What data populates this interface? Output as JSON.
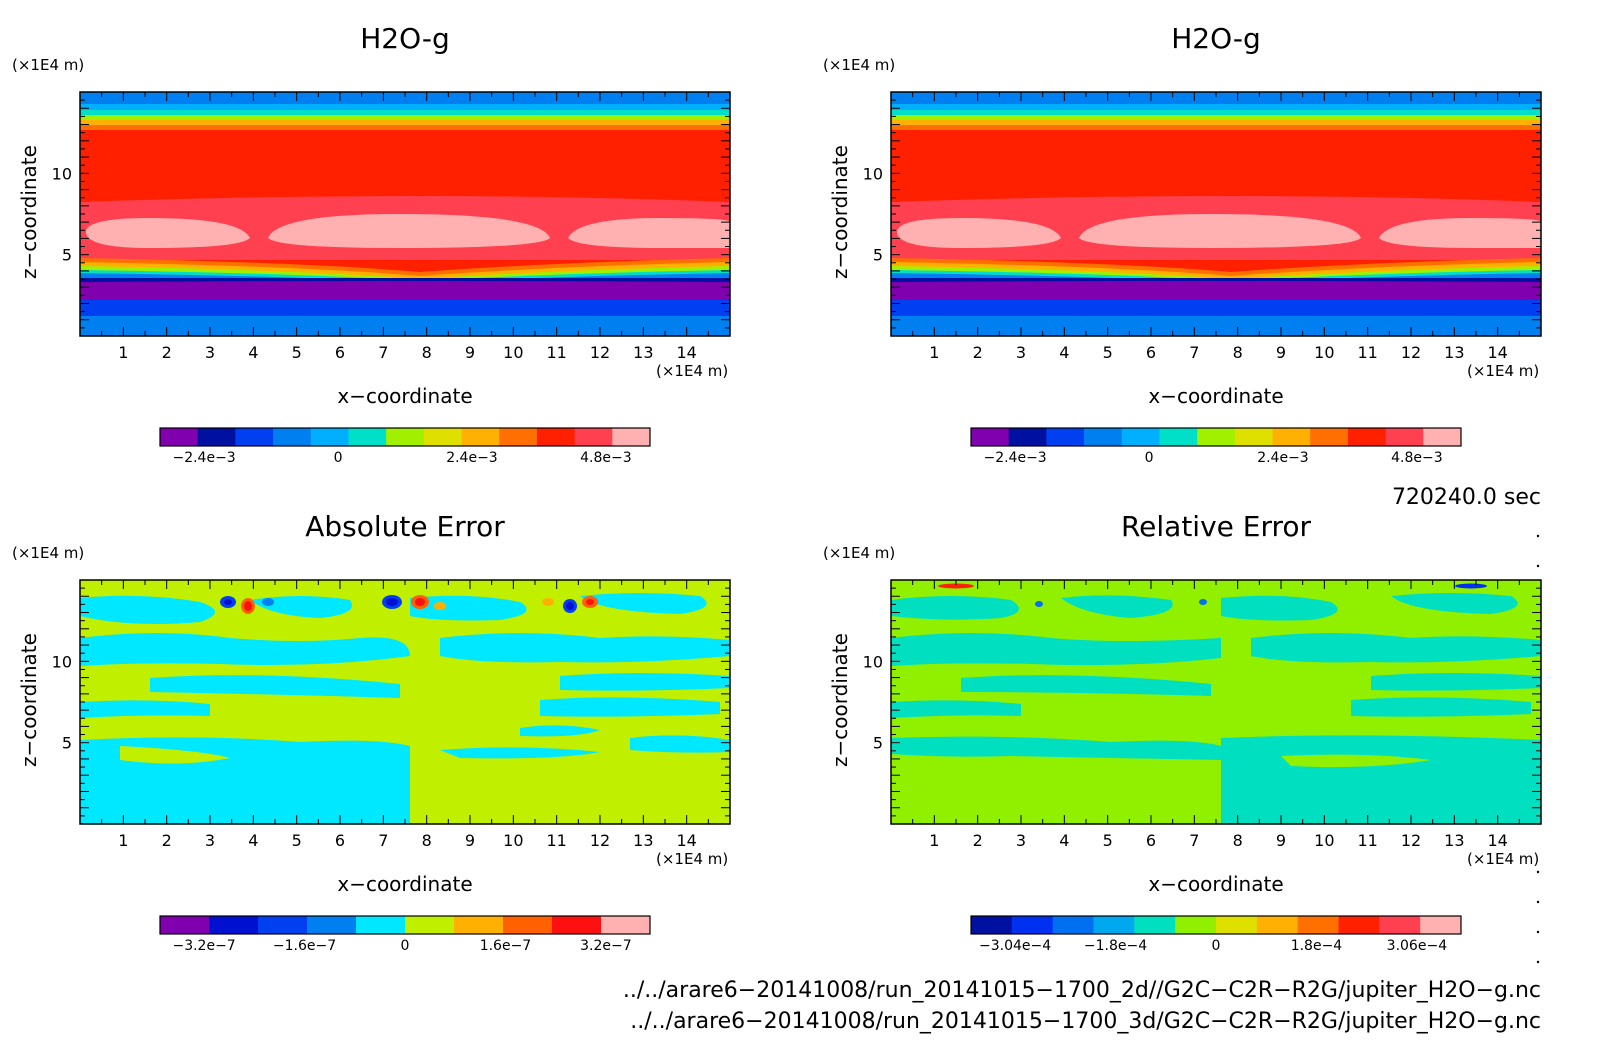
{
  "panels": [
    {
      "title": "H2O-g",
      "xlabel": "x−coordinate",
      "ylabel": "z−coordinate",
      "xunit": "(×1E4 m)",
      "yunit": "(×1E4 m)",
      "xticks": [
        "1",
        "2",
        "3",
        "4",
        "5",
        "6",
        "7",
        "8",
        "9",
        "10",
        "11",
        "12",
        "13",
        "14"
      ],
      "yticks": [
        "5",
        "10"
      ],
      "colorbar": {
        "labels": [
          "−2.4e−3",
          "0",
          "2.4e−3",
          "4.8e−3"
        ],
        "colors": [
          "#8000b0",
          "#0010a0",
          "#0040f0",
          "#0080f0",
          "#00b0ff",
          "#00e0c8",
          "#a0f000",
          "#e0e000",
          "#ffb000",
          "#ff7000",
          "#ff2000",
          "#ff4050",
          "#ffb0b0"
        ]
      }
    },
    {
      "title": "H2O-g",
      "xlabel": "x−coordinate",
      "ylabel": "z−coordinate",
      "xunit": "(×1E4 m)",
      "yunit": "(×1E4 m)",
      "xticks": [
        "1",
        "2",
        "3",
        "4",
        "5",
        "6",
        "7",
        "8",
        "9",
        "10",
        "11",
        "12",
        "13",
        "14"
      ],
      "yticks": [
        "5",
        "10"
      ],
      "colorbar": {
        "labels": [
          "−2.4e−3",
          "0",
          "2.4e−3",
          "4.8e−3"
        ],
        "colors": [
          "#8000b0",
          "#0010a0",
          "#0040f0",
          "#0080f0",
          "#00b0ff",
          "#00e0c8",
          "#a0f000",
          "#e0e000",
          "#ffb000",
          "#ff7000",
          "#ff2000",
          "#ff4050",
          "#ffb0b0"
        ]
      }
    },
    {
      "title": "Absolute Error",
      "xlabel": "x−coordinate",
      "ylabel": "z−coordinate",
      "xunit": "(×1E4 m)",
      "yunit": "(×1E4 m)",
      "xticks": [
        "1",
        "2",
        "3",
        "4",
        "5",
        "6",
        "7",
        "8",
        "9",
        "10",
        "11",
        "12",
        "13",
        "14"
      ],
      "yticks": [
        "5",
        "10"
      ],
      "colorbar": {
        "labels": [
          "−3.2e−7",
          "−1.6e−7",
          "0",
          "1.6e−7",
          "3.2e−7"
        ],
        "colors": [
          "#8000b0",
          "#0010d0",
          "#0040f0",
          "#0080f0",
          "#00e8ff",
          "#c0f000",
          "#ffb000",
          "#ff6000",
          "#ff1010",
          "#ffb0b0"
        ]
      }
    },
    {
      "title": "Relative Error",
      "xlabel": "x−coordinate",
      "ylabel": "z−coordinate",
      "xunit": "(×1E4 m)",
      "yunit": "(×1E4 m)",
      "xticks": [
        "1",
        "2",
        "3",
        "4",
        "5",
        "6",
        "7",
        "8",
        "9",
        "10",
        "11",
        "12",
        "13",
        "14"
      ],
      "yticks": [
        "5",
        "10"
      ],
      "colorbar": {
        "labels": [
          "−3.04e−4",
          "−1.8e−4",
          "0",
          "1.8e−4",
          "3.06e−4"
        ],
        "colors": [
          "#0010a0",
          "#0030f0",
          "#0070f0",
          "#00a8f0",
          "#00e0c0",
          "#90f000",
          "#e0e000",
          "#ffb000",
          "#ff7000",
          "#ff2000",
          "#ff4050",
          "#ffb0b0"
        ]
      }
    }
  ],
  "time_label": "720240.0 sec",
  "files": [
    "../../arare6−20141008/run_20141015−1700_2d//G2C−C2R−R2G/jupiter_H2O−g.nc",
    "../../arare6−20141008/run_20141015−1700_3d/G2C−C2R−R2G/jupiter_H2O−g.nc"
  ],
  "chart_data": [
    {
      "type": "heatmap",
      "title": "H2O-g",
      "xlabel": "x−coordinate",
      "ylabel": "z−coordinate",
      "xlim": [
        0,
        15
      ],
      "ylim": [
        0,
        15
      ],
      "clim": [
        -0.0036,
        0.006
      ]
    },
    {
      "type": "heatmap",
      "title": "H2O-g",
      "xlabel": "x−coordinate",
      "ylabel": "z−coordinate",
      "xlim": [
        0,
        15
      ],
      "ylim": [
        0,
        15
      ],
      "clim": [
        -0.0036,
        0.006
      ]
    },
    {
      "type": "heatmap",
      "title": "Absolute Error",
      "xlabel": "x−coordinate",
      "ylabel": "z−coordinate",
      "xlim": [
        0,
        15
      ],
      "ylim": [
        0,
        15
      ],
      "clim": [
        -4e-07,
        4e-07
      ]
    },
    {
      "type": "heatmap",
      "title": "Relative Error",
      "xlabel": "x−coordinate",
      "ylabel": "z−coordinate",
      "xlim": [
        0,
        15
      ],
      "ylim": [
        0,
        15
      ],
      "clim": [
        -0.000304,
        0.000306
      ]
    }
  ]
}
